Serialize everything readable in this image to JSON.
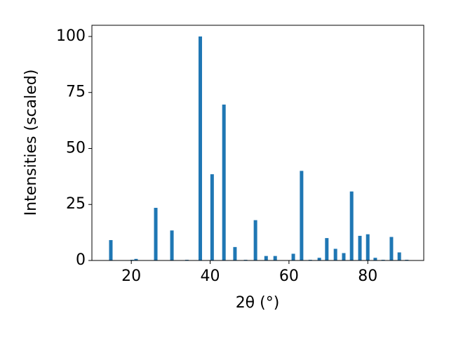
{
  "chart_data": {
    "type": "bar",
    "xlabel": "2θ (°)",
    "ylabel": "Intensities (scaled)",
    "color": "#1f77b4",
    "x": [
      14.8,
      20.2,
      21.2,
      26.2,
      30.3,
      34.1,
      37.5,
      40.5,
      43.5,
      46.3,
      49.0,
      51.5,
      54.2,
      56.5,
      61.1,
      63.2,
      65.4,
      67.7,
      69.6,
      71.8,
      73.9,
      75.9,
      78.0,
      80.0,
      81.9,
      83.9,
      86.0,
      88.0,
      89.9
    ],
    "values": [
      9.1,
      0.3,
      0.7,
      23.5,
      13.4,
      0.3,
      100,
      38.5,
      69.6,
      6,
      0.3,
      18,
      2,
      2,
      3,
      40,
      0.3,
      1.2,
      10,
      5.2,
      3.3,
      30.8,
      11,
      11.7,
      1.2,
      0.3,
      10.5,
      3.6,
      0.3
    ],
    "xlim": [
      10.0,
      94.2
    ],
    "ylim": [
      0,
      105
    ],
    "xticks": [
      20,
      40,
      60,
      80
    ],
    "yticks": [
      0,
      25,
      50,
      75,
      100
    ]
  }
}
